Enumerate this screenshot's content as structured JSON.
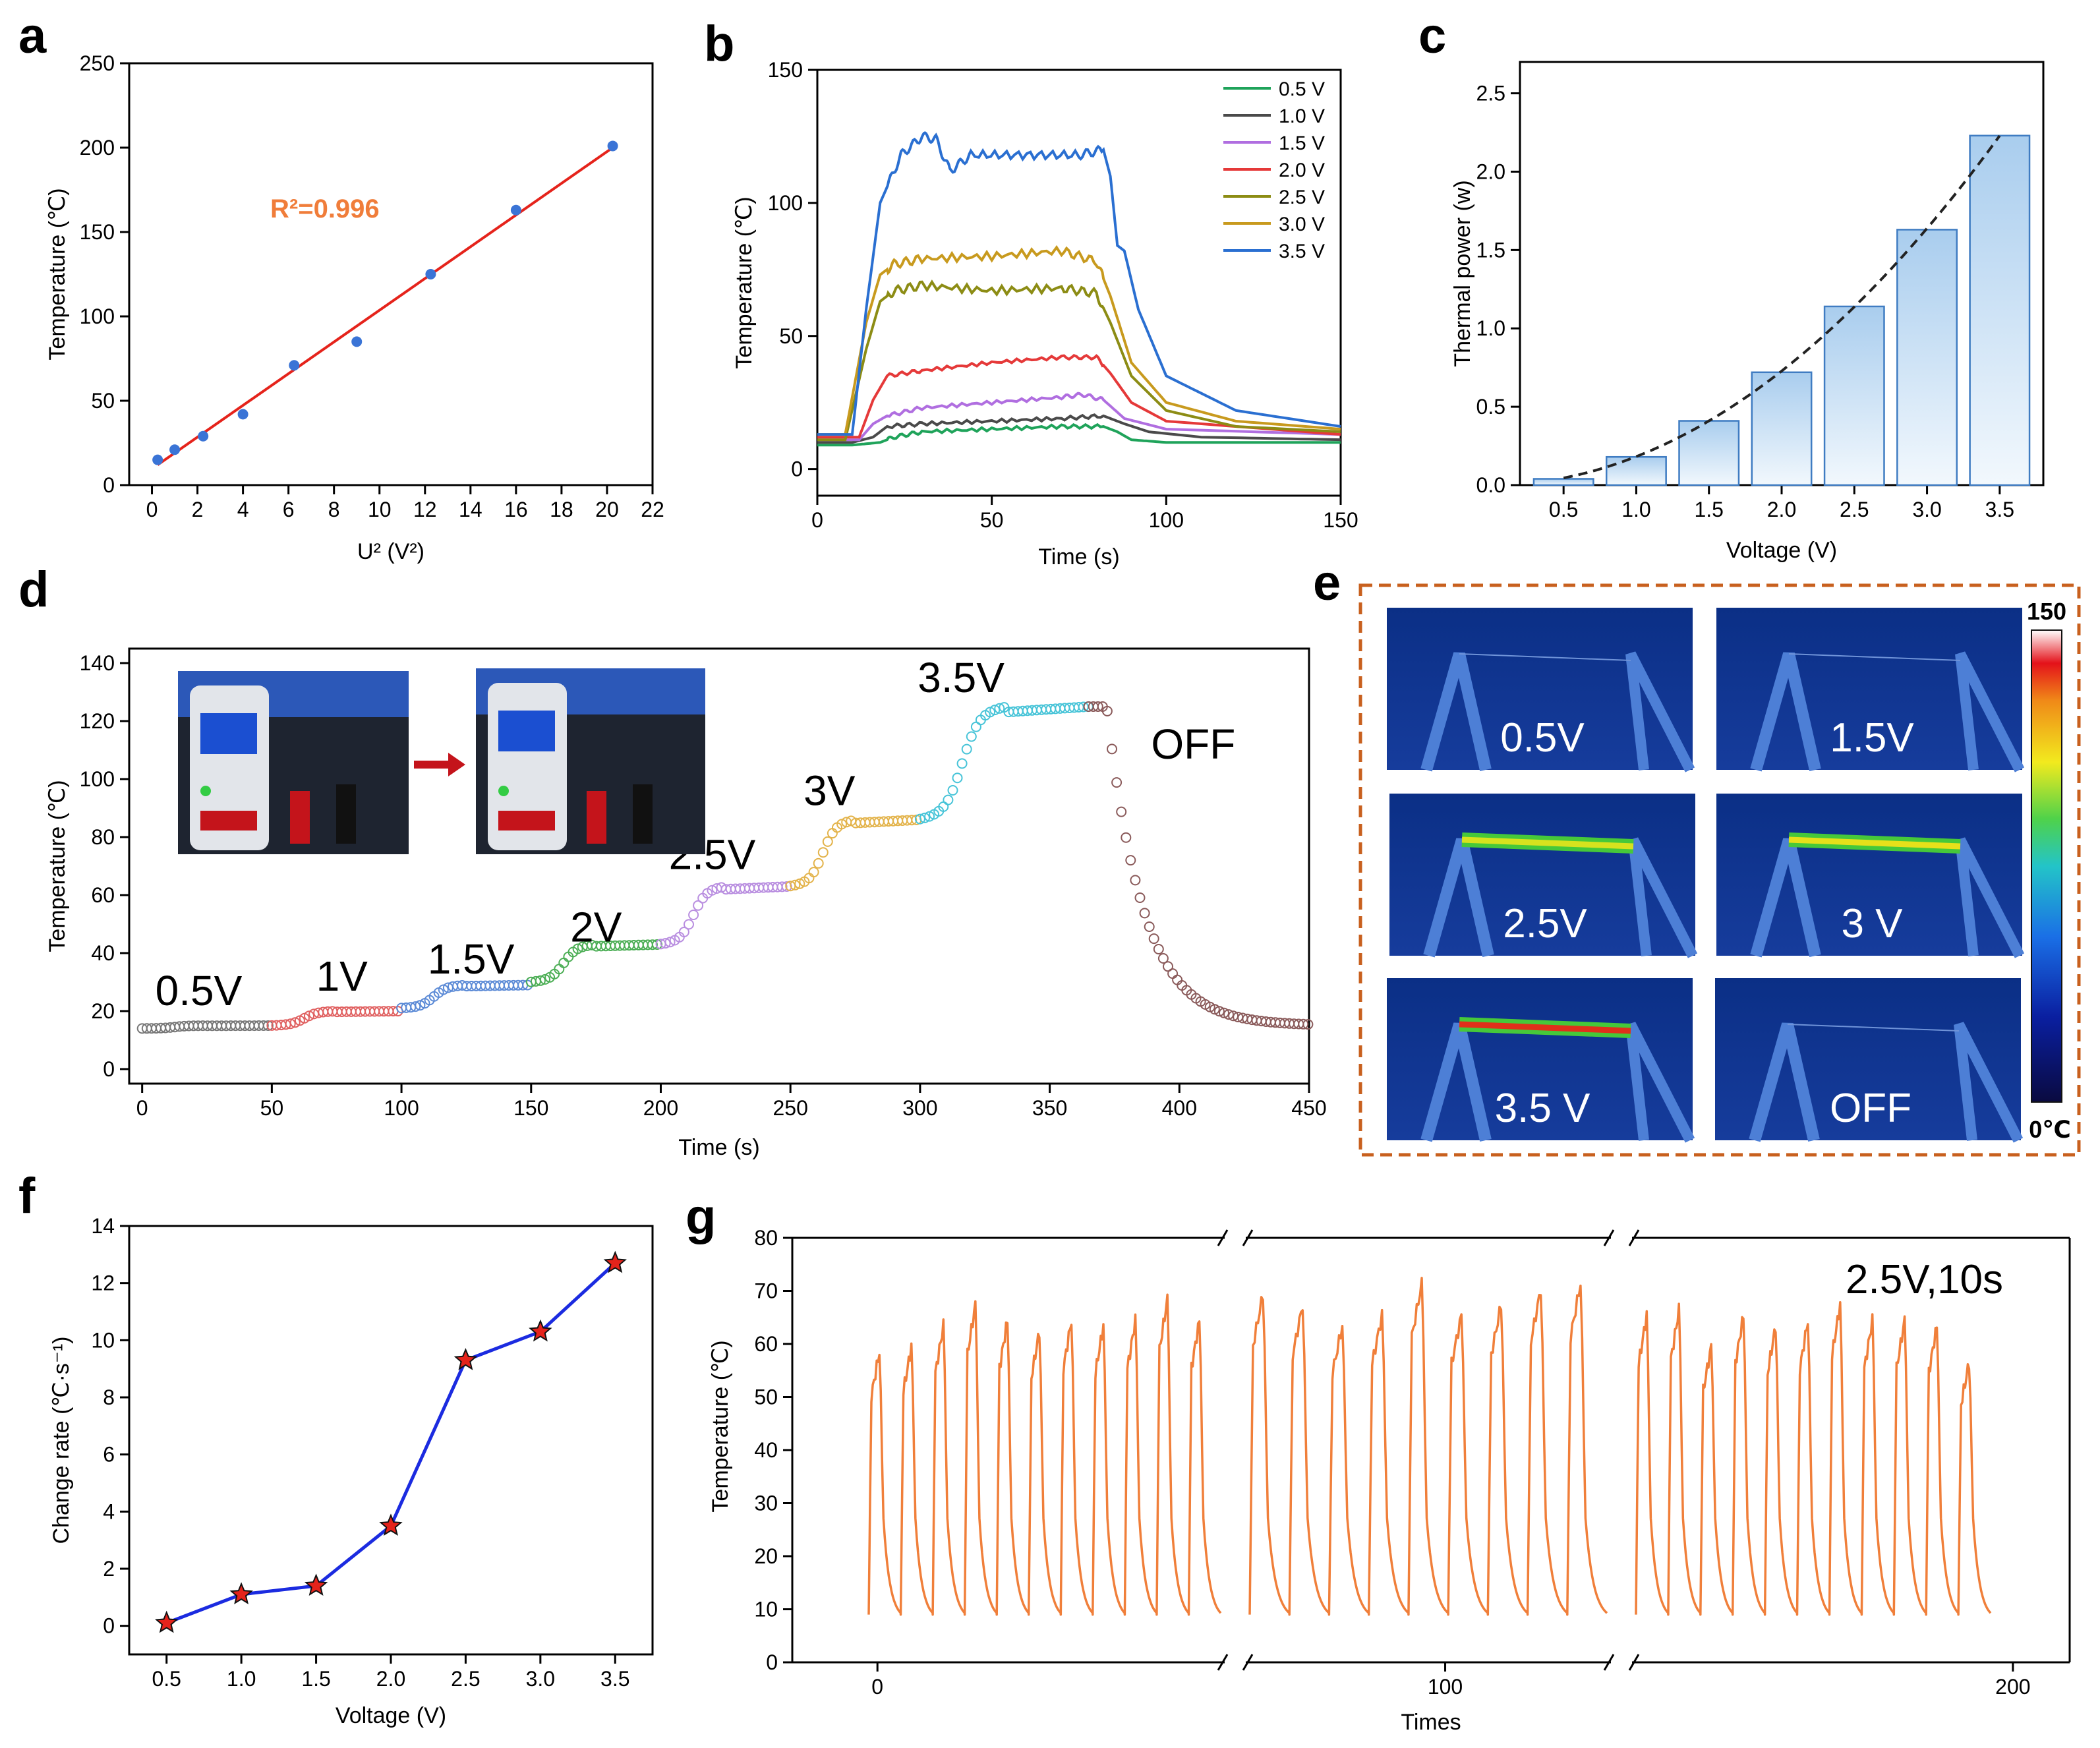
{
  "figure": {
    "panel_labels": [
      "a",
      "b",
      "c",
      "d",
      "e",
      "f",
      "g"
    ]
  },
  "chart_data": [
    {
      "panel": "a",
      "type": "scatter",
      "title": "",
      "xlabel": "U² (V²)",
      "ylabel": "Temperature (℃)",
      "xlim": [
        -1,
        22
      ],
      "ylim": [
        0,
        250
      ],
      "xticks": [
        0,
        2,
        4,
        6,
        8,
        10,
        12,
        14,
        16,
        18,
        20,
        22
      ],
      "yticks": [
        0,
        50,
        100,
        150,
        200,
        250
      ],
      "x": [
        0.25,
        1,
        2.25,
        4,
        6.25,
        9,
        12.25,
        16,
        20.25
      ],
      "y": [
        15,
        21,
        29,
        42,
        71,
        85,
        125,
        163,
        201
      ],
      "fit": {
        "x": [
          0.25,
          20.25
        ],
        "y": [
          12,
          200
        ],
        "color": "#e5231b"
      },
      "annotation": "R²=0.996",
      "annotation_color": "#f07d3a",
      "marker_color": "#3a74d6"
    },
    {
      "panel": "b",
      "type": "line",
      "xlabel": "Time (s)",
      "ylabel": "Temperature (℃)",
      "xlim": [
        0,
        150
      ],
      "ylim": [
        -10,
        150
      ],
      "xticks": [
        0,
        50,
        100,
        150
      ],
      "yticks": [
        0,
        50,
        100,
        150
      ],
      "series": [
        {
          "name": "0.5 V",
          "color": "#1fa35a",
          "x": [
            0,
            10,
            18,
            22,
            30,
            50,
            70,
            82,
            86,
            90,
            100,
            150
          ],
          "y": [
            9,
            9,
            10,
            12,
            14,
            15,
            16,
            16,
            14,
            11,
            10,
            10
          ]
        },
        {
          "name": "1.0 V",
          "color": "#4a4a4a",
          "x": [
            0,
            10,
            16,
            20,
            30,
            50,
            70,
            82,
            88,
            95,
            110,
            150
          ],
          "y": [
            10,
            10,
            12,
            16,
            17,
            18,
            19,
            20,
            17,
            14,
            12,
            11
          ]
        },
        {
          "name": "1.5 V",
          "color": "#b06ee0",
          "x": [
            0,
            12,
            16,
            20,
            30,
            50,
            70,
            76,
            82,
            88,
            100,
            150
          ],
          "y": [
            11,
            11,
            17,
            20,
            23,
            25,
            27,
            28,
            26,
            19,
            15,
            13
          ]
        },
        {
          "name": "2.0 V",
          "color": "#e53939",
          "x": [
            0,
            12,
            16,
            20,
            30,
            50,
            70,
            80,
            84,
            90,
            100,
            150
          ],
          "y": [
            12,
            12,
            26,
            35,
            37,
            40,
            42,
            42,
            36,
            25,
            18,
            13
          ]
        },
        {
          "name": "2.5 V",
          "color": "#8c8c14",
          "x": [
            0,
            8,
            14,
            18,
            22,
            30,
            50,
            70,
            80,
            84,
            90,
            100,
            120,
            150
          ],
          "y": [
            11,
            11,
            45,
            63,
            67,
            69,
            67,
            68,
            66,
            55,
            35,
            22,
            16,
            14
          ]
        },
        {
          "name": "3.0 V",
          "color": "#c89a1e",
          "x": [
            0,
            8,
            14,
            18,
            22,
            30,
            50,
            70,
            80,
            84,
            90,
            100,
            120,
            150
          ],
          "y": [
            13,
            13,
            55,
            73,
            77,
            79,
            80,
            82,
            78,
            65,
            40,
            25,
            18,
            15
          ]
        },
        {
          "name": "3.5 V",
          "color": "#2a6fd1",
          "x": [
            0,
            10,
            14,
            18,
            24,
            30,
            34,
            38,
            44,
            60,
            75,
            82,
            84,
            86,
            88,
            92,
            100,
            120,
            150
          ],
          "y": [
            13,
            13,
            60,
            100,
            118,
            125,
            124,
            112,
            118,
            118,
            118,
            120,
            110,
            84,
            82,
            60,
            35,
            22,
            16
          ]
        }
      ]
    },
    {
      "panel": "c",
      "type": "bar",
      "xlabel": "Voltage (V)",
      "ylabel": "Thermal power (w)",
      "categories": [
        "0.5",
        "1.0",
        "1.5",
        "2.0",
        "2.5",
        "3.0",
        "3.5"
      ],
      "values": [
        0.04,
        0.18,
        0.41,
        0.72,
        1.14,
        1.63,
        2.23
      ],
      "ylim": [
        0,
        2.7
      ],
      "yticks": [
        0.0,
        0.5,
        1.0,
        1.5,
        2.0,
        2.5
      ],
      "trend": "quadratic dashed fit"
    },
    {
      "panel": "d",
      "type": "scatter",
      "xlabel": "Time (s)",
      "ylabel": "Temperature (℃)",
      "xlim": [
        -5,
        450
      ],
      "ylim": [
        -5,
        145
      ],
      "xticks": [
        0,
        50,
        100,
        150,
        200,
        250,
        300,
        350,
        400,
        450
      ],
      "yticks": [
        0,
        20,
        40,
        60,
        80,
        100,
        120,
        140
      ],
      "segments": [
        {
          "label": "0.5V",
          "color": "#777777",
          "x": [
            0,
            50
          ],
          "y": [
            14,
            15
          ]
        },
        {
          "label": "1V",
          "color": "#e06060",
          "x": [
            50,
            100
          ],
          "y": [
            15,
            20
          ]
        },
        {
          "label": "1.5V",
          "color": "#5b8ad6",
          "x": [
            100,
            150
          ],
          "y": [
            21,
            29
          ]
        },
        {
          "label": "2V",
          "color": "#4cae55",
          "x": [
            150,
            200
          ],
          "y": [
            30,
            43
          ]
        },
        {
          "label": "2.5V",
          "color": "#b98ee0",
          "x": [
            200,
            250
          ],
          "y": [
            43,
            63
          ]
        },
        {
          "label": "3V",
          "color": "#e3b34a",
          "x": [
            250,
            300
          ],
          "y": [
            63,
            86
          ]
        },
        {
          "label": "3.5V",
          "color": "#47c4d8",
          "x": [
            300,
            365
          ],
          "y": [
            86,
            125
          ]
        },
        {
          "label": "OFF",
          "color": "#8a5a5a",
          "x": [
            365,
            450
          ],
          "y": [
            125,
            15
          ]
        }
      ],
      "inset_arrow_color": "#c4141b"
    },
    {
      "panel": "e",
      "type": "heatmap",
      "tiles": [
        "0.5V",
        "1.5V",
        "2.5V",
        "3 V",
        "3.5 V",
        "OFF"
      ],
      "colorbar_max": "150",
      "colorbar_min": "0℃",
      "border_color": "#c8601e"
    },
    {
      "panel": "f",
      "type": "line",
      "xlabel": "Voltage (V)",
      "ylabel": "Change rate (℃·s⁻¹)",
      "x": [
        0.5,
        1.0,
        1.5,
        2.0,
        2.5,
        3.0,
        3.5
      ],
      "y": [
        0.1,
        1.1,
        1.4,
        3.5,
        9.3,
        10.3,
        12.7
      ],
      "xlim": [
        0.25,
        3.75
      ],
      "ylim": [
        -1,
        14
      ],
      "xticks": [
        0.5,
        1.0,
        1.5,
        2.0,
        2.5,
        3.0,
        3.5
      ],
      "yticks": [
        0,
        2,
        4,
        6,
        8,
        10,
        12,
        14
      ],
      "line_color": "#1b2be0",
      "marker_color": "#e5231b"
    },
    {
      "panel": "g",
      "type": "line",
      "xlabel": "Times",
      "ylabel": "Temperature (℃)",
      "xlim": [
        -15,
        210
      ],
      "ylim": [
        0,
        80
      ],
      "xticks": [
        0,
        100,
        200
      ],
      "yticks": [
        0,
        10,
        20,
        30,
        40,
        50,
        60,
        70,
        80
      ],
      "annotation": "2.5V,10s",
      "color": "#f07f3a",
      "cycle_peaks": [
        59,
        60,
        64,
        68,
        65,
        63,
        65,
        64,
        65,
        69,
        65,
        70,
        68,
        64,
        66,
        72,
        66,
        68,
        71,
        72,
        66,
        67,
        60,
        66,
        64,
        65,
        68,
        65,
        65,
        64,
        57
      ]
    }
  ]
}
